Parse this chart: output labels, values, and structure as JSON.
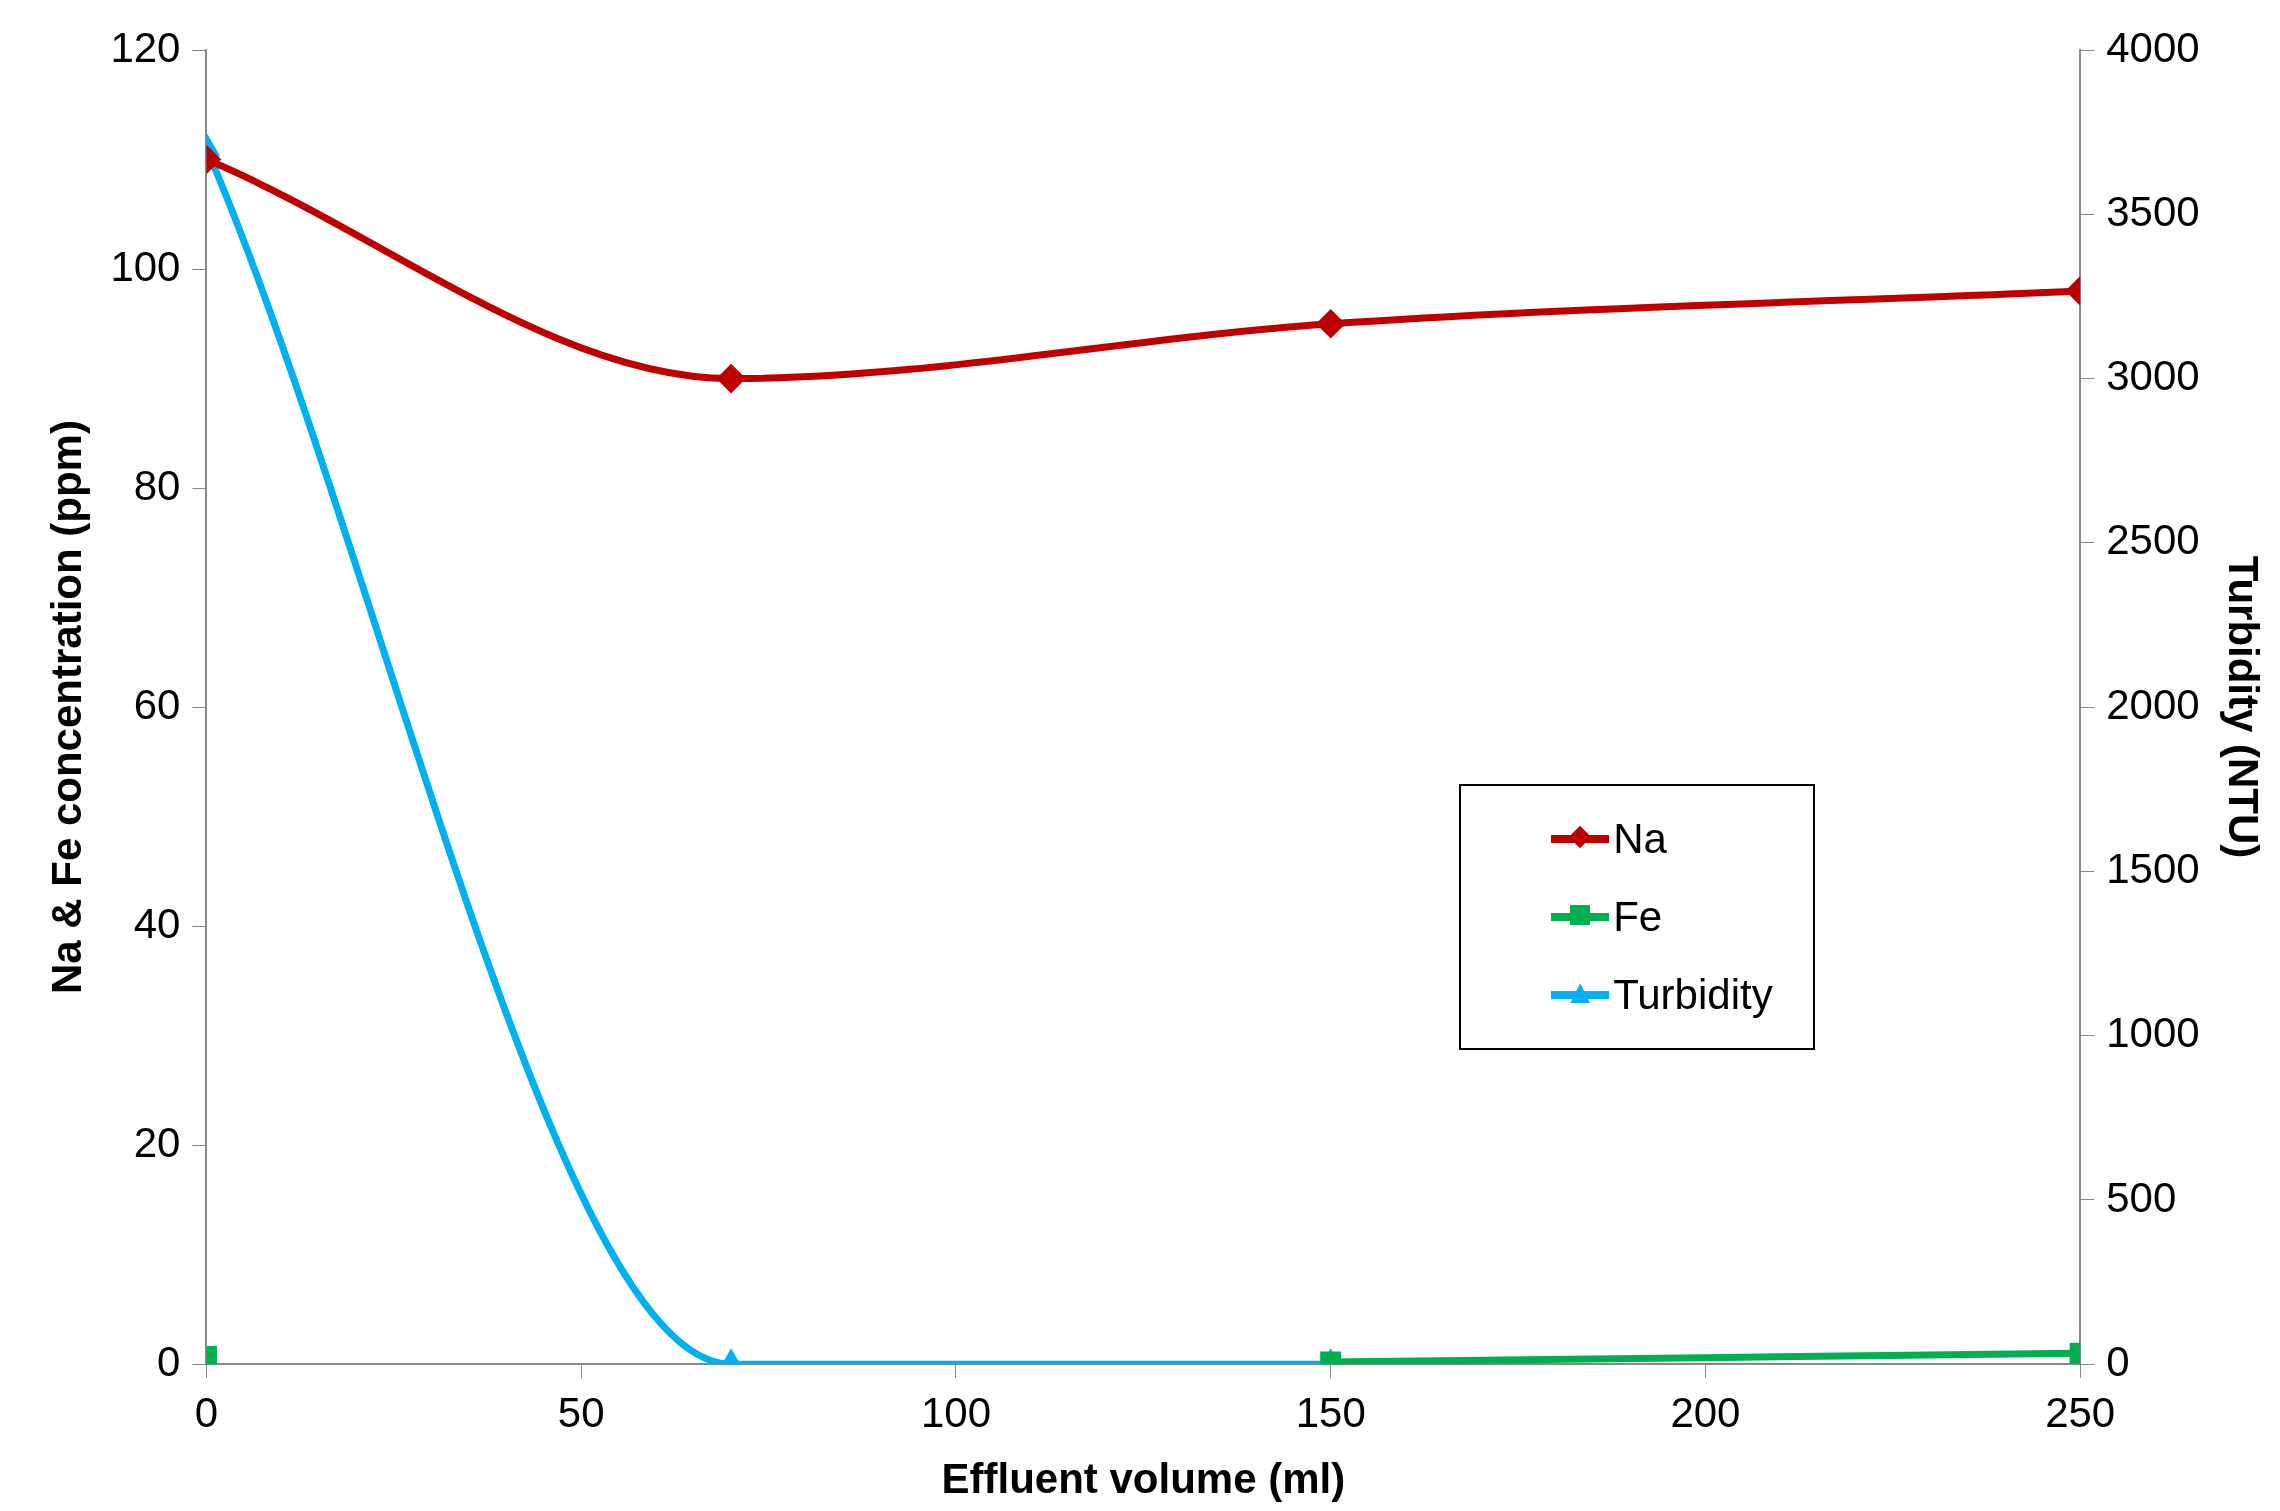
{
  "chart_data": {
    "type": "line",
    "xlabel": "Effluent volume (ml)",
    "ylabel": "Na & Fe concentration (ppm)",
    "y2label": "Turbidity (NTU)",
    "xlim": [
      0,
      250
    ],
    "xticks": [
      0,
      50,
      100,
      150,
      200,
      250
    ],
    "ylim": [
      0,
      120
    ],
    "yticks": [
      0,
      20,
      40,
      60,
      80,
      100,
      120
    ],
    "y2lim": [
      0,
      4000
    ],
    "y2ticks": [
      0,
      500,
      1000,
      1500,
      2000,
      2500,
      3000,
      3500,
      4000
    ],
    "grid": false,
    "legend": "right",
    "line_style": "solid",
    "series": [
      {
        "name": "Na",
        "color": "#c00000",
        "marker": "diamond",
        "x": [
          0,
          70,
          150,
          250
        ],
        "values": [
          110,
          90,
          95,
          98
        ]
      },
      {
        "name": "Fe",
        "color": "#00b050",
        "marker": "square",
        "x": [
          0,
          70,
          150,
          250
        ],
        "values": [
          0.7,
          null,
          0.2,
          1
        ]
      },
      {
        "name": "Turbidity",
        "color": "#00b0f0",
        "marker": "triangle",
        "axis": "y2",
        "x": [
          0,
          70,
          150
        ],
        "values": [
          3700,
          0,
          0
        ]
      }
    ]
  }
}
